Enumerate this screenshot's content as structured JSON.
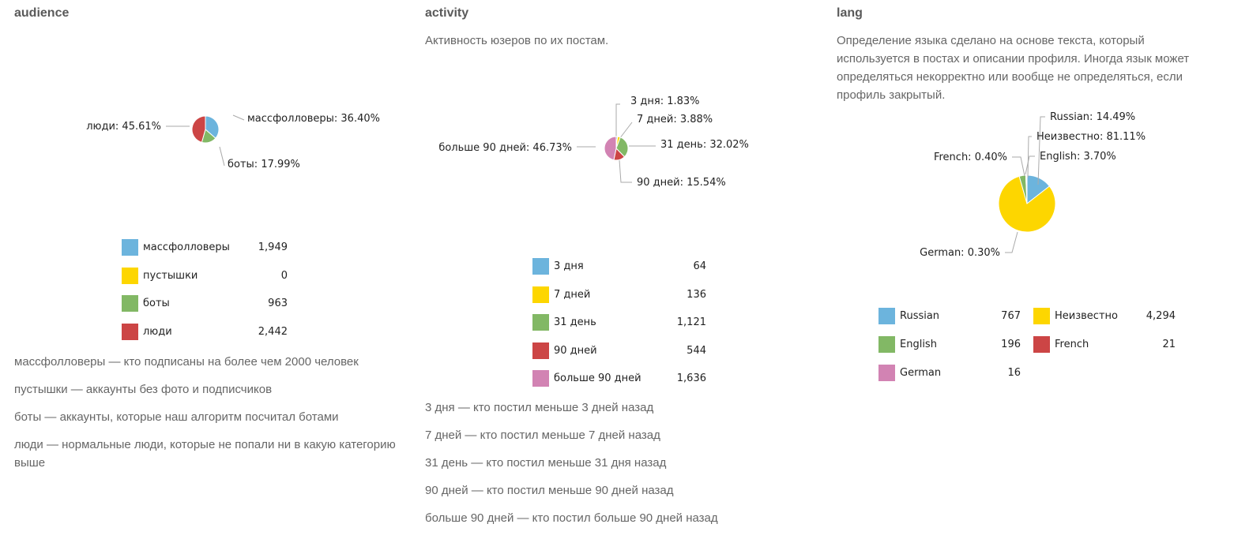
{
  "panels": [
    {
      "title": "audience",
      "description": "",
      "notes": [
        "массфолловеры — кто подписаны на более чем 2000 человек",
        "пустышки — аккаунты без фото и подписчиков",
        "боты — аккаунты, которые наш алгоритм посчитал ботами",
        "люди — нормальные люди, которые не попали ни в какую категорию выше"
      ]
    },
    {
      "title": "activity",
      "description": "Активность юзеров по их постам.",
      "notes": [
        "3 дня — кто постил меньше 3 дней назад",
        "7 дней — кто постил меньше 7 дней назад",
        "31 день — кто постил меньше 31 дня назад",
        "90 дней — кто постил меньше 90 дней назад",
        "больше 90 дней — кто постил больше 90 дней назад"
      ]
    },
    {
      "title": "lang",
      "description": "Определение языка сделано на основе текста, который используется в постах и описании профиля. Иногда язык может определяться некорректно или вообще не определяться, если профиль закрытый.",
      "notes": []
    }
  ],
  "chart_data": [
    {
      "type": "pie",
      "title": "audience",
      "slices": [
        {
          "name": "массфолловеры",
          "value": 1949,
          "value_label": "1,949",
          "percent_label": "массфолловеры: 36.40%",
          "color": "#6cb4dd"
        },
        {
          "name": "пустышки",
          "value": 0,
          "value_label": "0",
          "percent_label": "",
          "color": "#fdd600"
        },
        {
          "name": "боты",
          "value": 963,
          "value_label": "963",
          "percent_label": "боты: 17.99%",
          "color": "#82b865"
        },
        {
          "name": "люди",
          "value": 2442,
          "value_label": "2,442",
          "percent_label": "люди: 45.61%",
          "color": "#cc4545"
        }
      ]
    },
    {
      "type": "pie",
      "title": "activity",
      "slices": [
        {
          "name": "3 дня",
          "value": 64,
          "value_label": "64",
          "percent_label": "3 дня: 1.83%",
          "color": "#6cb4dd"
        },
        {
          "name": "7 дней",
          "value": 136,
          "value_label": "136",
          "percent_label": "7 дней: 3.88%",
          "color": "#fdd600"
        },
        {
          "name": "31 день",
          "value": 1121,
          "value_label": "1,121",
          "percent_label": "31 день: 32.02%",
          "color": "#82b865"
        },
        {
          "name": "90 дней",
          "value": 544,
          "value_label": "544",
          "percent_label": "90 дней: 15.54%",
          "color": "#cc4545"
        },
        {
          "name": "больше 90 дней",
          "value": 1636,
          "value_label": "1,636",
          "percent_label": "больше 90 дней: 46.73%",
          "color": "#d283b3"
        }
      ]
    },
    {
      "type": "pie",
      "title": "lang",
      "slices": [
        {
          "name": "Russian",
          "value": 767,
          "value_label": "767",
          "percent_label": "Russian: 14.49%",
          "color": "#6cb4dd"
        },
        {
          "name": "Неизвестно",
          "value": 4294,
          "value_label": "4,294",
          "percent_label": "Неизвестно: 81.11%",
          "color": "#fdd600"
        },
        {
          "name": "English",
          "value": 196,
          "value_label": "196",
          "percent_label": "English: 3.70%",
          "color": "#82b865"
        },
        {
          "name": "French",
          "value": 21,
          "value_label": "21",
          "percent_label": "French: 0.40%",
          "color": "#cc4545"
        },
        {
          "name": "German",
          "value": 16,
          "value_label": "16",
          "percent_label": "German: 0.30%",
          "color": "#d283b3"
        }
      ]
    }
  ]
}
